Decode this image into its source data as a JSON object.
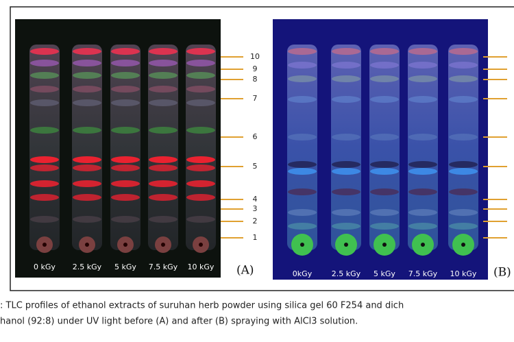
{
  "panels": [
    {
      "label": "(A)",
      "lanes": [
        "0 kGy",
        "2.5 kGy",
        "5 kGy",
        "7.5 kGy",
        "10 kGy"
      ],
      "markers": [
        "10",
        "9",
        "8",
        "7",
        "6",
        "5",
        "4",
        "3",
        "2",
        "1"
      ]
    },
    {
      "label": "(B)",
      "lanes": [
        "0kGy",
        "2.5 kGy",
        "5 kGy",
        "7.5 kGy",
        "10 kGy"
      ]
    }
  ],
  "caption": [
    ": TLC profiles of ethanol extracts of suruhan herb powder using silica gel 60 F254 and dich",
    "hanol (92:8) under UV light before (A) and after (B) spraying with AlCl3 solution."
  ]
}
